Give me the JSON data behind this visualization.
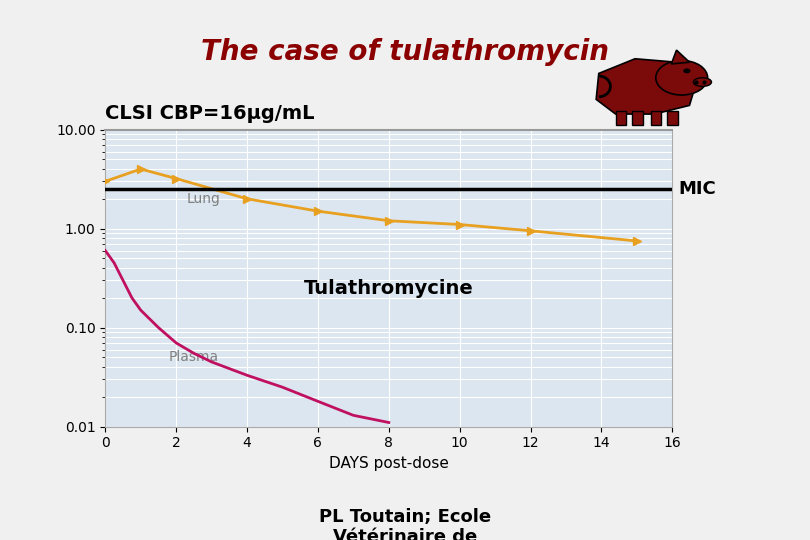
{
  "title": "The case of tulathromycin",
  "title_color": "#8B0000",
  "title_fontsize": 20,
  "clsi_label": "CLSI CBP=16μg/mL",
  "clsi_fontsize": 14,
  "xlabel": "DAYS post-dose",
  "footer": "PL Toutain; Ecole\nVétérinaire de",
  "plot_bg_color": "#dce6f0",
  "mic_value": 2.5,
  "mic_label": "MIC",
  "lung_label": "Lung",
  "plasma_label": "Plasma",
  "drug_label": "Tulathromycine",
  "lung_x": [
    0,
    1,
    2,
    4,
    6,
    8,
    10,
    12,
    15
  ],
  "lung_y": [
    3.0,
    4.0,
    3.2,
    2.0,
    1.5,
    1.2,
    1.1,
    0.95,
    0.75
  ],
  "lung_color": "#E8A020",
  "plasma_x": [
    0,
    0.25,
    0.5,
    0.75,
    1.0,
    1.5,
    2.0,
    2.5,
    3.0,
    4.0,
    5.0,
    6.0,
    7.0,
    8.0
  ],
  "plasma_y": [
    0.6,
    0.45,
    0.3,
    0.2,
    0.15,
    0.1,
    0.07,
    0.055,
    0.045,
    0.033,
    0.025,
    0.018,
    0.013,
    0.011
  ],
  "plasma_color": "#C01060",
  "mic_line_color": "#000000",
  "pig_color": "#7B0A0A",
  "ylim_min": 0.01,
  "ylim_max": 10.0,
  "xlim_min": 0,
  "xlim_max": 16,
  "xticks": [
    0,
    2,
    4,
    6,
    8,
    10,
    12,
    14,
    16
  ],
  "yticks": [
    0.01,
    0.1,
    1.0,
    10.0
  ],
  "ytick_labels": [
    "0.01",
    "0.10",
    "1.00",
    "10.00"
  ]
}
